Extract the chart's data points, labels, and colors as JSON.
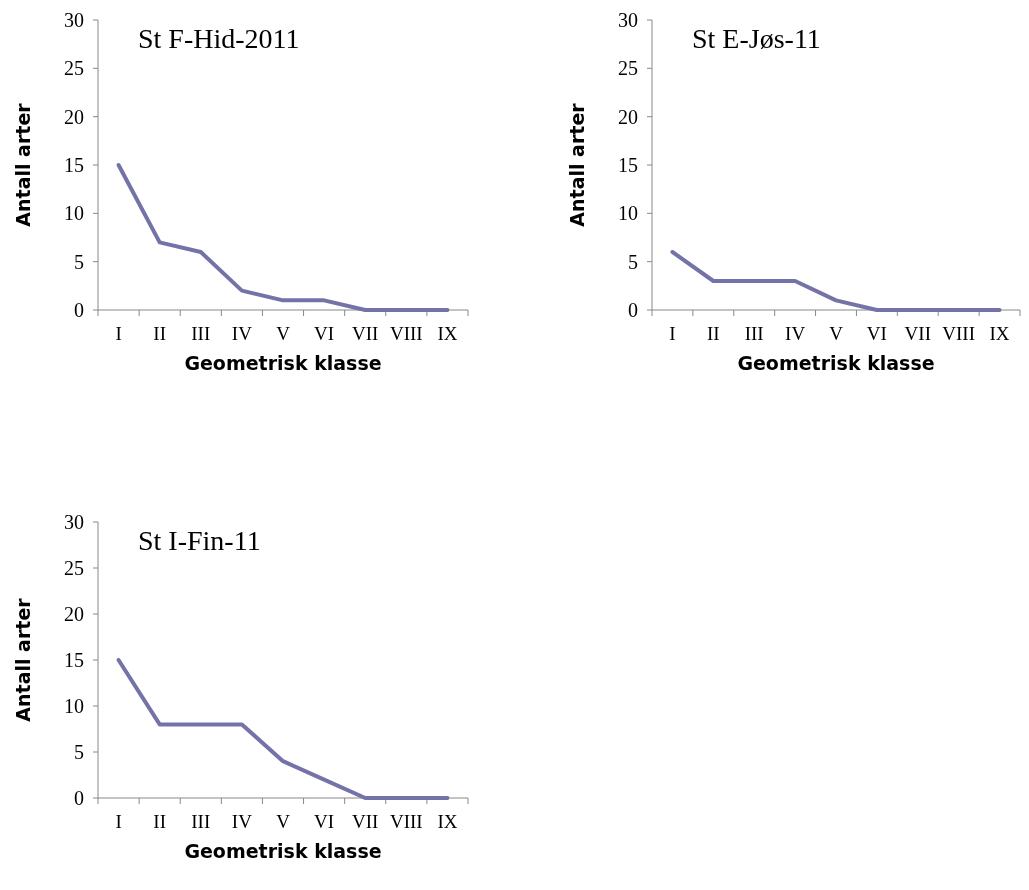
{
  "chart_data": [
    {
      "type": "line",
      "title": "St F-Hid-2011",
      "xlabel": "Geometrisk klasse",
      "ylabel": "Antall arter",
      "categories": [
        "I",
        "II",
        "III",
        "IV",
        "V",
        "VI",
        "VII",
        "VIII",
        "IX"
      ],
      "series": [
        {
          "color": "#7373a8",
          "values": [
            15,
            7,
            6,
            2,
            1,
            1,
            0,
            0,
            0
          ]
        }
      ],
      "ylim": [
        0,
        30
      ],
      "yticks": [
        0,
        5,
        10,
        15,
        20,
        25,
        30
      ]
    },
    {
      "type": "line",
      "title": "St E-Jøs-11",
      "xlabel": "Geometrisk klasse",
      "ylabel": "Antall arter",
      "categories": [
        "I",
        "II",
        "III",
        "IV",
        "V",
        "VI",
        "VII",
        "VIII",
        "IX"
      ],
      "series": [
        {
          "color": "#7373a8",
          "values": [
            6,
            3,
            3,
            3,
            1,
            0,
            0,
            0,
            0
          ]
        }
      ],
      "ylim": [
        0,
        30
      ],
      "yticks": [
        0,
        5,
        10,
        15,
        20,
        25,
        30
      ]
    },
    {
      "type": "line",
      "title": "St I-Fin-11",
      "xlabel": "Geometrisk klasse",
      "ylabel": "Antall arter",
      "categories": [
        "I",
        "II",
        "III",
        "IV",
        "V",
        "VI",
        "VII",
        "VIII",
        "IX"
      ],
      "series": [
        {
          "color": "#7373a8",
          "values": [
            15,
            8,
            8,
            8,
            4,
            2,
            0,
            0,
            0
          ]
        }
      ],
      "ylim": [
        0,
        30
      ],
      "yticks": [
        0,
        5,
        10,
        15,
        20,
        25,
        30
      ]
    }
  ]
}
